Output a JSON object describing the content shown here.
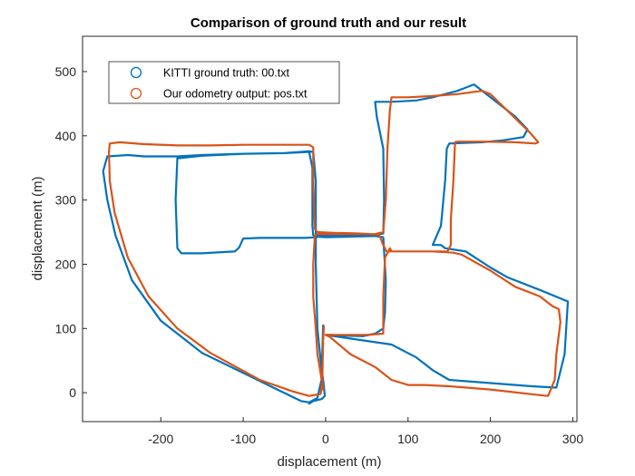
{
  "chart_data": {
    "type": "line",
    "title": "Comparison of ground truth and our result",
    "xlabel": "displacement (m)",
    "ylabel": "displacement (m)",
    "xlim": [
      -295,
      305
    ],
    "ylim": [
      -45,
      555
    ],
    "xticks": [
      -200,
      -100,
      0,
      100,
      200,
      300
    ],
    "yticks": [
      0,
      100,
      200,
      300,
      400,
      500
    ],
    "grid": false,
    "legend_position": "top-left",
    "series": [
      {
        "name": "KITTI ground truth: 00.txt",
        "color": "#0072BD",
        "points": [
          [
            -3,
            105
          ],
          [
            -5,
            20
          ],
          [
            -10,
            -8
          ],
          [
            -20,
            -15
          ],
          [
            -30,
            -13
          ],
          [
            -70,
            12
          ],
          [
            -150,
            62
          ],
          [
            -200,
            112
          ],
          [
            -235,
            175
          ],
          [
            -255,
            245
          ],
          [
            -265,
            300
          ],
          [
            -270,
            345
          ],
          [
            -265,
            368
          ],
          [
            -240,
            370
          ],
          [
            -220,
            368
          ],
          [
            -180,
            368
          ],
          [
            -150,
            370
          ],
          [
            -100,
            372
          ],
          [
            -50,
            373
          ],
          [
            -20,
            376
          ],
          [
            -15,
            375
          ],
          [
            -12,
            330
          ],
          [
            -12,
            242
          ],
          [
            -25,
            241
          ],
          [
            -40,
            241
          ],
          [
            -80,
            241
          ],
          [
            -100,
            240
          ],
          [
            -105,
            226
          ],
          [
            -110,
            220
          ],
          [
            -150,
            217
          ],
          [
            -175,
            217
          ],
          [
            -180,
            225
          ],
          [
            -182,
            300
          ],
          [
            -180,
            365
          ],
          [
            -150,
            369
          ],
          [
            -100,
            372
          ],
          [
            -50,
            373
          ],
          [
            -20,
            375
          ],
          [
            -16,
            350
          ],
          [
            -16,
            260
          ],
          [
            -15,
            245
          ],
          [
            -10,
            243
          ],
          [
            0,
            242
          ],
          [
            30,
            243
          ],
          [
            60,
            244
          ],
          [
            70,
            242
          ],
          [
            73,
            175
          ],
          [
            72,
            125
          ],
          [
            70,
            100
          ],
          [
            60,
            92
          ],
          [
            45,
            88
          ],
          [
            20,
            89
          ],
          [
            5,
            90
          ],
          [
            0,
            90
          ],
          [
            80,
            75
          ],
          [
            110,
            55
          ],
          [
            130,
            35
          ],
          [
            150,
            20
          ],
          [
            200,
            15
          ],
          [
            250,
            10
          ],
          [
            280,
            8
          ],
          [
            290,
            60
          ],
          [
            294,
            142
          ],
          [
            260,
            160
          ],
          [
            220,
            180
          ],
          [
            200,
            195
          ],
          [
            170,
            220
          ],
          [
            145,
            225
          ],
          [
            140,
            230
          ],
          [
            130,
            230
          ],
          [
            140,
            260
          ],
          [
            145,
            330
          ],
          [
            147,
            380
          ],
          [
            150,
            388
          ],
          [
            190,
            390
          ],
          [
            215,
            393
          ],
          [
            240,
            398
          ],
          [
            245,
            410
          ],
          [
            230,
            430
          ],
          [
            200,
            460
          ],
          [
            180,
            480
          ],
          [
            160,
            470
          ],
          [
            130,
            460
          ],
          [
            110,
            455
          ],
          [
            80,
            453
          ],
          [
            60,
            453
          ],
          [
            62,
            430
          ],
          [
            70,
            380
          ],
          [
            71,
            300
          ],
          [
            70,
            248
          ],
          [
            60,
            246
          ],
          [
            0,
            245
          ],
          [
            -10,
            245
          ],
          [
            -12,
            240
          ],
          [
            -12,
            200
          ],
          [
            -10,
            100
          ],
          [
            -6,
            50
          ],
          [
            -3,
            20
          ],
          [
            -1,
            -5
          ],
          [
            -5,
            -10
          ],
          [
            -15,
            -13
          ],
          [
            -20,
            -17
          ]
        ]
      },
      {
        "name": "Our odometry output: pos.txt",
        "color": "#D95319",
        "points": [
          [
            -2,
            104
          ],
          [
            -3,
            80
          ],
          [
            -4,
            20
          ],
          [
            -6,
            -2
          ],
          [
            -20,
            -5
          ],
          [
            -40,
            2
          ],
          [
            -80,
            20
          ],
          [
            -140,
            62
          ],
          [
            -180,
            100
          ],
          [
            -215,
            150
          ],
          [
            -240,
            210
          ],
          [
            -256,
            280
          ],
          [
            -262,
            330
          ],
          [
            -263,
            375
          ],
          [
            -262,
            388
          ],
          [
            -250,
            390
          ],
          [
            -220,
            387
          ],
          [
            -180,
            385
          ],
          [
            -140,
            385
          ],
          [
            -100,
            386
          ],
          [
            -60,
            386
          ],
          [
            -20,
            386
          ],
          [
            -15,
            382
          ],
          [
            -15,
            330
          ],
          [
            -13,
            255
          ],
          [
            -10,
            250
          ],
          [
            10,
            249
          ],
          [
            40,
            248
          ],
          [
            65,
            246
          ],
          [
            70,
            230
          ],
          [
            74,
            220
          ],
          [
            100,
            220
          ],
          [
            130,
            220
          ],
          [
            155,
            218
          ],
          [
            165,
            215
          ],
          [
            200,
            190
          ],
          [
            230,
            165
          ],
          [
            260,
            150
          ],
          [
            275,
            135
          ],
          [
            283,
            130
          ],
          [
            285,
            110
          ],
          [
            280,
            60
          ],
          [
            278,
            20
          ],
          [
            270,
            -5
          ],
          [
            255,
            -3
          ],
          [
            200,
            5
          ],
          [
            150,
            10
          ],
          [
            120,
            12
          ],
          [
            100,
            12
          ],
          [
            80,
            20
          ],
          [
            60,
            40
          ],
          [
            30,
            60
          ],
          [
            5,
            87
          ],
          [
            0,
            90
          ],
          [
            20,
            90
          ],
          [
            50,
            90
          ],
          [
            70,
            92
          ],
          [
            70,
            150
          ],
          [
            72,
            210
          ],
          [
            78,
            225
          ],
          [
            80,
            220
          ],
          [
            130,
            220
          ],
          [
            148,
            220
          ],
          [
            152,
            230
          ],
          [
            152,
            270
          ],
          [
            155,
            330
          ],
          [
            157,
            390
          ],
          [
            160,
            391
          ],
          [
            190,
            391
          ],
          [
            230,
            390
          ],
          [
            255,
            388
          ],
          [
            258,
            390
          ],
          [
            248,
            405
          ],
          [
            220,
            440
          ],
          [
            200,
            465
          ],
          [
            190,
            470
          ],
          [
            160,
            465
          ],
          [
            130,
            462
          ],
          [
            100,
            460
          ],
          [
            80,
            460
          ],
          [
            78,
            440
          ],
          [
            75,
            380
          ],
          [
            73,
            300
          ],
          [
            70,
            250
          ],
          [
            60,
            247
          ],
          [
            30,
            247
          ],
          [
            0,
            247
          ],
          [
            -10,
            247
          ],
          [
            -13,
            245
          ],
          [
            -15,
            200
          ],
          [
            -15,
            150
          ],
          [
            -12,
            100
          ],
          [
            -10,
            60
          ],
          [
            -6,
            30
          ],
          [
            -3,
            5
          ]
        ]
      }
    ]
  }
}
